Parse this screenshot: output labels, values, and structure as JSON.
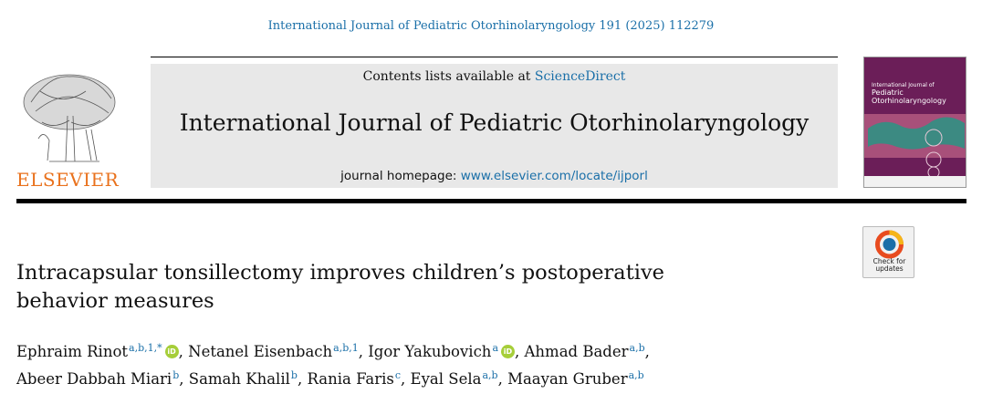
{
  "citation": "International Journal of Pediatric Otorhinolaryngology 191 (2025) 112279",
  "publisher": {
    "name": "ELSEVIER",
    "logo_icon": "elsevier-tree-logo"
  },
  "header": {
    "contents_prefix": "Contents lists available at ",
    "contents_link": "ScienceDirect",
    "journal_title": "International Journal of Pediatric Otorhinolaryngology",
    "homepage_prefix": "journal homepage: ",
    "homepage_link": "www.elsevier.com/locate/ijporl"
  },
  "cover": {
    "title_small": "International Journal of",
    "title_main": "Pediatric Otorhinolaryngology"
  },
  "check_updates": {
    "line1": "Check for",
    "line2": "updates"
  },
  "article": {
    "title_line1": "Intracapsular tonsillectomy improves children’s postoperative",
    "title_line2": "behavior measures"
  },
  "authors": [
    {
      "name": "Ephraim Rinot",
      "aff": "a,b,1,*",
      "orcid": true,
      "sep": ","
    },
    {
      "name": "Netanel Eisenbach",
      "aff": "a,b,1",
      "orcid": false,
      "sep": ","
    },
    {
      "name": "Igor Yakubovich",
      "aff": "a",
      "orcid": true,
      "sep": ","
    },
    {
      "name": "Ahmad Bader",
      "aff": "a,b",
      "orcid": false,
      "sep": ","
    },
    {
      "name": "Abeer Dabbah Miari",
      "aff": "b",
      "orcid": false,
      "sep": ","
    },
    {
      "name": "Samah Khalil",
      "aff": "b",
      "orcid": false,
      "sep": ","
    },
    {
      "name": "Rania Faris",
      "aff": "c",
      "orcid": false,
      "sep": ","
    },
    {
      "name": "Eyal Sela",
      "aff": "a,b",
      "orcid": false,
      "sep": ","
    },
    {
      "name": "Maayan Gruber",
      "aff": "a,b",
      "orcid": false,
      "sep": ""
    }
  ],
  "colors": {
    "link": "#1a6fa8",
    "elsevier_orange": "#e9711c",
    "orcid_green": "#a6ce39",
    "cover_purple": "#6b1e58"
  }
}
